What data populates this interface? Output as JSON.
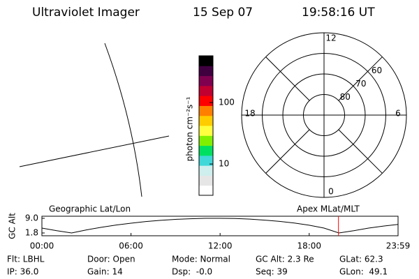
{
  "header": {
    "title": "Ultraviolet Imager",
    "date": "15 Sep 07",
    "time": "19:58:16 UT"
  },
  "chart_data": [
    {
      "type": "colorbar",
      "label": "photon cm⁻²s⁻¹",
      "log_scale": true,
      "ylim": [
        3.1,
        575
      ],
      "yticks": [
        10,
        100
      ],
      "colors": [
        "#ffffff",
        "#e6e6e6",
        "#cfeeee",
        "#40d8d8",
        "#00e060",
        "#80f000",
        "#ffff40",
        "#ffcc00",
        "#ff8000",
        "#ff0000",
        "#c00030",
        "#800050",
        "#400040",
        "#000000"
      ]
    },
    {
      "type": "polar",
      "rlim": [
        50,
        90
      ],
      "rings": [
        60,
        70,
        80
      ],
      "mlt_ticks": [
        12,
        6,
        0,
        18
      ]
    },
    {
      "type": "line",
      "y_label": "GC Alt",
      "annotations": [
        "Geographic Lat/Lon",
        "Apex MLat/MLT"
      ],
      "x": [
        0,
        1,
        2,
        3,
        4,
        5,
        6,
        7,
        8,
        9,
        10,
        11,
        12,
        13,
        14,
        15,
        16,
        17,
        18,
        19,
        20,
        21,
        22,
        23,
        23.983
      ],
      "values": [
        4.2,
        2.9,
        1.8,
        3.3,
        4.6,
        5.7,
        6.6,
        7.4,
        8.0,
        8.5,
        8.8,
        9.0,
        9.0,
        8.9,
        8.6,
        8.1,
        7.5,
        6.7,
        5.6,
        4.2,
        1.8,
        2.9,
        4.2,
        5.2,
        6.0
      ],
      "color": "#000000",
      "xlim": [
        0,
        23.983
      ],
      "xticks": [
        {
          "value": 0,
          "label": "00:00"
        },
        {
          "value": 6,
          "label": "06:00"
        },
        {
          "value": 12,
          "label": "12:00"
        },
        {
          "value": 18,
          "label": "18:00"
        },
        {
          "value": 23.983,
          "label": "23:59"
        }
      ],
      "ylim": [
        1.8,
        9.0
      ],
      "yticks": [
        {
          "value": 9.0,
          "label": "9.0"
        },
        1.8
      ],
      "marker_x": 19.97,
      "marker_color": "#ff0000"
    }
  ],
  "footer": {
    "rows": [
      [
        "Flt: LBHL",
        "Door: Open",
        "Mode: Normal",
        "GC Alt: 2.3 Re",
        "GLat: 62.3"
      ],
      [
        "IP: 36.0",
        "Gain: 14",
        "Dsp:  -0.0",
        "Seq: 39",
        "GLon:  49.1"
      ]
    ]
  }
}
